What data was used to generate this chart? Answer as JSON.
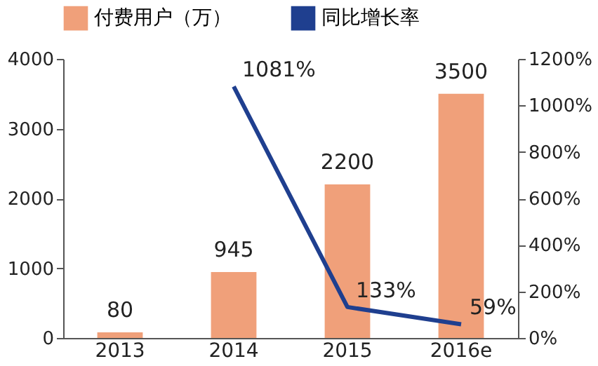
{
  "chart_data": {
    "type": "bar",
    "categories": [
      "2013",
      "2014",
      "2015",
      "2016e"
    ],
    "series": [
      {
        "name": "付费用户（万）",
        "color": "#f0a07a",
        "values": [
          80,
          945,
          2200,
          3500
        ],
        "value_labels": [
          "80",
          "945",
          "2200",
          "3500"
        ]
      },
      {
        "name": "同比增长率",
        "type": "line",
        "axis": "y2",
        "color": "#1f3f8f",
        "values": [
          null,
          1081,
          133,
          59
        ],
        "value_labels": [
          null,
          "1081%",
          "133%",
          "59%"
        ]
      }
    ],
    "ylim": [
      0,
      4000
    ],
    "yticks": [
      0,
      1000,
      2000,
      3000,
      4000
    ],
    "y2lim": [
      0,
      1200
    ],
    "y2ticks": [
      {
        "value": 0,
        "label": "0%"
      },
      {
        "value": 200,
        "label": "200%"
      },
      {
        "value": 400,
        "label": "400%"
      },
      {
        "value": 600,
        "label": "600%"
      },
      {
        "value": 800,
        "label": "800%"
      },
      {
        "value": 1000,
        "label": "1000%"
      },
      {
        "value": 1200,
        "label": "1200%"
      }
    ],
    "legend": "top"
  }
}
